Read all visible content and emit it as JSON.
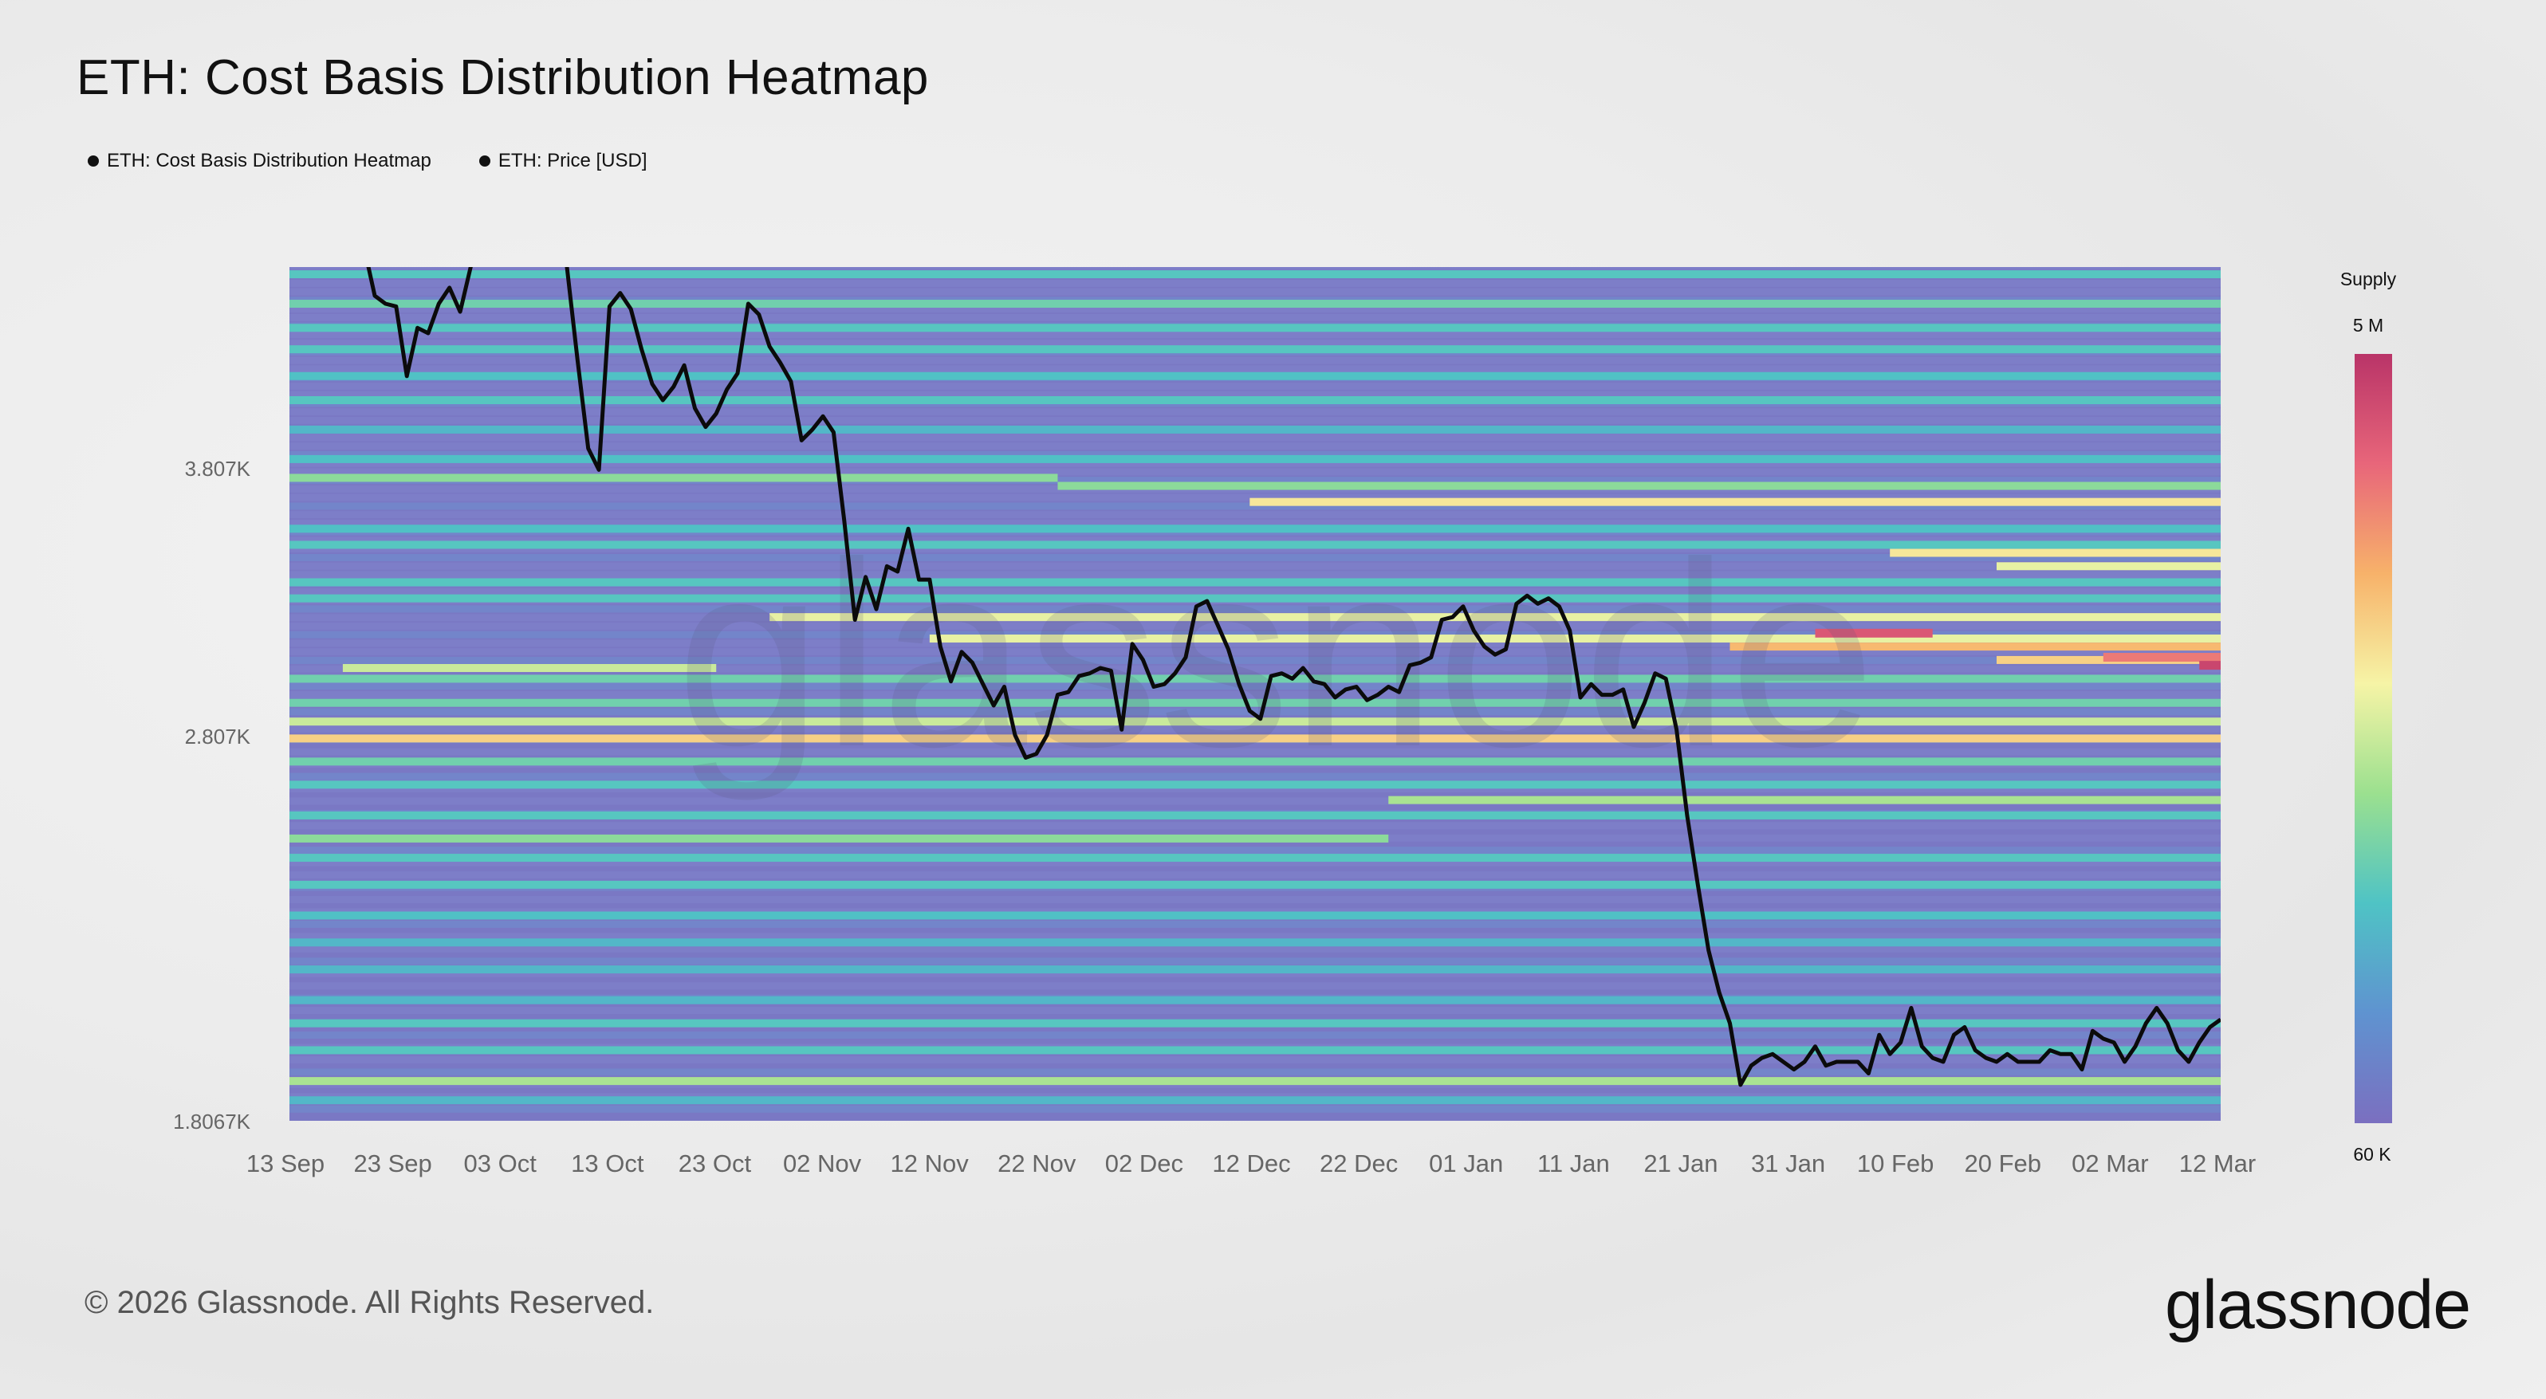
{
  "header": {
    "title": "ETH: Cost Basis Distribution Heatmap"
  },
  "legend": {
    "items": [
      {
        "label": "ETH: Cost Basis Distribution Heatmap"
      },
      {
        "label": "ETH: Price [USD]"
      }
    ]
  },
  "colorbar": {
    "title": "Supply",
    "max_label": "5 M",
    "min_label": "60 K",
    "colors": [
      "#7b6fc0",
      "#5f93d0",
      "#4fc3c5",
      "#9be08f",
      "#f6f4a6",
      "#f7b26a",
      "#e8667a",
      "#b93468"
    ]
  },
  "footer": {
    "copyright": "© 2026 Glassnode. All Rights Reserved.",
    "logo": "glassnode"
  },
  "watermark": "glassnode",
  "chart_data": {
    "type": "heatmap",
    "title": "ETH: Cost Basis Distribution Heatmap",
    "x_tick_labels": [
      "13 Sep",
      "23 Sep",
      "03 Oct",
      "13 Oct",
      "23 Oct",
      "02 Nov",
      "12 Nov",
      "22 Nov",
      "02 Dec",
      "12 Dec",
      "22 Dec",
      "01 Jan",
      "11 Jan",
      "21 Jan",
      "31 Jan",
      "10 Feb",
      "20 Feb",
      "02 Mar",
      "12 Mar"
    ],
    "y_tick_labels": [
      "3.807K",
      "2.807K",
      "1.8067K"
    ],
    "y_ticks": [
      3807,
      2807,
      1806.7
    ],
    "ylim": [
      1806.7,
      4850
    ],
    "x_range_days": [
      0,
      181
    ],
    "price_series": {
      "name": "ETH: Price [USD]",
      "day": [
        0,
        1,
        2,
        3,
        4,
        5,
        6,
        7,
        8,
        9,
        10,
        11,
        12,
        13,
        14,
        15,
        16,
        17,
        18,
        19,
        20,
        21,
        22,
        23,
        24,
        25,
        26,
        27,
        28,
        29,
        30,
        31,
        32,
        33,
        34,
        35,
        36,
        37,
        38,
        39,
        40,
        41,
        42,
        43,
        44,
        45,
        46,
        47,
        48,
        49,
        50,
        51,
        52,
        53,
        54,
        55,
        56,
        57,
        58,
        59,
        60,
        61,
        62,
        63,
        64,
        65,
        66,
        67,
        68,
        69,
        70,
        71,
        72,
        73,
        74,
        75,
        76,
        77,
        78,
        79,
        80,
        81,
        82,
        83,
        84,
        85,
        86,
        87,
        88,
        89,
        90,
        91,
        92,
        93,
        94,
        95,
        96,
        97,
        98,
        99,
        100,
        101,
        102,
        103,
        104,
        105,
        106,
        107,
        108,
        109,
        110,
        111,
        112,
        113,
        114,
        115,
        116,
        117,
        118,
        119,
        120,
        121,
        122,
        123,
        124,
        125,
        126,
        127,
        128,
        129,
        130,
        131,
        132,
        133,
        134,
        135,
        136,
        137,
        138,
        139,
        140,
        141,
        142,
        143,
        144,
        145,
        146,
        147,
        148,
        149,
        150,
        151,
        152,
        153,
        154,
        155,
        156,
        157,
        158,
        159,
        160,
        161,
        162,
        163,
        164,
        165,
        166,
        167,
        168,
        169,
        170,
        171,
        172,
        173,
        174,
        175,
        176,
        177,
        178,
        179,
        180,
        181
      ],
      "price": [
        4760,
        4700,
        4685,
        4745,
        4740,
        4650,
        4660,
        4630,
        4450,
        4420,
        4410,
        4150,
        4330,
        4310,
        4420,
        4480,
        4390,
        4560,
        4640,
        4670,
        4630,
        4650,
        4700,
        4800,
        4660,
        4630,
        4560,
        4210,
        3880,
        3800,
        4410,
        4460,
        4400,
        4250,
        4120,
        4060,
        4110,
        4190,
        4030,
        3960,
        4010,
        4100,
        4160,
        4420,
        4380,
        4260,
        4200,
        4130,
        3910,
        3950,
        4000,
        3940,
        3610,
        3240,
        3400,
        3280,
        3440,
        3420,
        3580,
        3390,
        3390,
        3140,
        3010,
        3120,
        3080,
        3000,
        2920,
        2990,
        2810,
        2750,
        2760,
        2810,
        2960,
        2970,
        3030,
        3040,
        3060,
        3050,
        2830,
        3150,
        3090,
        2990,
        3000,
        3040,
        3100,
        3290,
        3310,
        3220,
        3130,
        3000,
        2900,
        2870,
        3030,
        3040,
        3020,
        3060,
        3010,
        3000,
        2950,
        2980,
        2990,
        2940,
        2960,
        2990,
        2970,
        3070,
        3080,
        3100,
        3240,
        3250,
        3290,
        3200,
        3140,
        3110,
        3130,
        3300,
        3330,
        3300,
        3320,
        3290,
        3200,
        2950,
        3000,
        2960,
        2960,
        2980,
        2840,
        2930,
        3040,
        3020,
        2830,
        2600,
        2420,
        2250,
        2140,
        2060,
        1900,
        1950,
        1970,
        1980,
        1960,
        1940,
        1960,
        2000,
        1950,
        1960,
        1960,
        1960,
        1930,
        2030,
        1980,
        2010,
        2100,
        2000,
        1970,
        1960,
        2030,
        2050,
        1990,
        1970,
        1960,
        1980,
        1960,
        1960,
        1960,
        1990,
        1980,
        1980,
        1940,
        2040,
        2020,
        2010,
        1960,
        2000,
        2060,
        2100,
        2060,
        1990,
        1960,
        2010,
        2050,
        2070,
        2060,
        2070
      ]
    },
    "supply_bands": [
      {
        "price": 4740,
        "start_day": 2,
        "end_day": 181,
        "level": 0.55
      },
      {
        "price": 4690,
        "start_day": 0,
        "end_day": 181,
        "level": 0.45
      },
      {
        "price": 4620,
        "start_day": 5,
        "end_day": 181,
        "level": 0.35
      },
      {
        "price": 4530,
        "start_day": 0,
        "end_day": 181,
        "level": 0.3
      },
      {
        "price": 4420,
        "start_day": 0,
        "end_day": 181,
        "level": 0.35
      },
      {
        "price": 4330,
        "start_day": 0,
        "end_day": 181,
        "level": 0.3
      },
      {
        "price": 4250,
        "start_day": 0,
        "end_day": 181,
        "level": 0.3
      },
      {
        "price": 4150,
        "start_day": 0,
        "end_day": 181,
        "level": 0.28
      },
      {
        "price": 4060,
        "start_day": 0,
        "end_day": 181,
        "level": 0.3
      },
      {
        "price": 3950,
        "start_day": 0,
        "end_day": 181,
        "level": 0.25
      },
      {
        "price": 3840,
        "start_day": 0,
        "end_day": 181,
        "level": 0.28
      },
      {
        "price": 3770,
        "start_day": 0,
        "end_day": 72,
        "level": 0.4
      },
      {
        "price": 3740,
        "start_day": 72,
        "end_day": 181,
        "level": 0.4
      },
      {
        "price": 3680,
        "start_day": 90,
        "end_day": 181,
        "level": 0.6
      },
      {
        "price": 3580,
        "start_day": 0,
        "end_day": 181,
        "level": 0.28
      },
      {
        "price": 3520,
        "start_day": 0,
        "end_day": 181,
        "level": 0.3
      },
      {
        "price": 3490,
        "start_day": 150,
        "end_day": 181,
        "level": 0.6
      },
      {
        "price": 3440,
        "start_day": 160,
        "end_day": 181,
        "level": 0.55
      },
      {
        "price": 3380,
        "start_day": 0,
        "end_day": 181,
        "level": 0.3
      },
      {
        "price": 3320,
        "start_day": 0,
        "end_day": 181,
        "level": 0.3
      },
      {
        "price": 3250,
        "start_day": 45,
        "end_day": 181,
        "level": 0.55
      },
      {
        "price": 3170,
        "start_day": 60,
        "end_day": 181,
        "level": 0.55
      },
      {
        "price": 3140,
        "start_day": 135,
        "end_day": 181,
        "level": 0.7
      },
      {
        "price": 3090,
        "start_day": 160,
        "end_day": 181,
        "level": 0.65
      },
      {
        "price": 3060,
        "start_day": 5,
        "end_day": 40,
        "level": 0.5
      },
      {
        "price": 3020,
        "start_day": 0,
        "end_day": 181,
        "level": 0.35
      },
      {
        "price": 2930,
        "start_day": 0,
        "end_day": 181,
        "level": 0.35
      },
      {
        "price": 2860,
        "start_day": 0,
        "end_day": 181,
        "level": 0.5
      },
      {
        "price": 2800,
        "start_day": 0,
        "end_day": 181,
        "level": 0.65
      },
      {
        "price": 2740,
        "start_day": 0,
        "end_day": 181,
        "level": 0.35
      },
      {
        "price": 2680,
        "start_day": 0,
        "end_day": 181,
        "level": 0.3
      },
      {
        "price": 2640,
        "start_day": 103,
        "end_day": 181,
        "level": 0.45
      },
      {
        "price": 2600,
        "start_day": 0,
        "end_day": 181,
        "level": 0.3
      },
      {
        "price": 2540,
        "start_day": 0,
        "end_day": 103,
        "level": 0.4
      },
      {
        "price": 2490,
        "start_day": 0,
        "end_day": 181,
        "level": 0.3
      },
      {
        "price": 2420,
        "start_day": 0,
        "end_day": 181,
        "level": 0.3
      },
      {
        "price": 2340,
        "start_day": 0,
        "end_day": 181,
        "level": 0.28
      },
      {
        "price": 2270,
        "start_day": 0,
        "end_day": 181,
        "level": 0.25
      },
      {
        "price": 2200,
        "start_day": 0,
        "end_day": 181,
        "level": 0.25
      },
      {
        "price": 2120,
        "start_day": 0,
        "end_day": 181,
        "level": 0.25
      },
      {
        "price": 2060,
        "start_day": 0,
        "end_day": 181,
        "level": 0.3
      },
      {
        "price": 1990,
        "start_day": 0,
        "end_day": 181,
        "level": 0.3
      },
      {
        "price": 1910,
        "start_day": 0,
        "end_day": 181,
        "level": 0.45
      },
      {
        "price": 1860,
        "start_day": 0,
        "end_day": 181,
        "level": 0.25
      }
    ],
    "highlight_segments": [
      {
        "price": 3190,
        "start_day": 143,
        "end_day": 154,
        "level": 0.9
      },
      {
        "price": 3100,
        "start_day": 170,
        "end_day": 181,
        "level": 0.82
      },
      {
        "price": 3070,
        "start_day": 179,
        "end_day": 181,
        "level": 0.95
      }
    ],
    "colorbar_range": [
      "60 K",
      "5 M"
    ]
  }
}
